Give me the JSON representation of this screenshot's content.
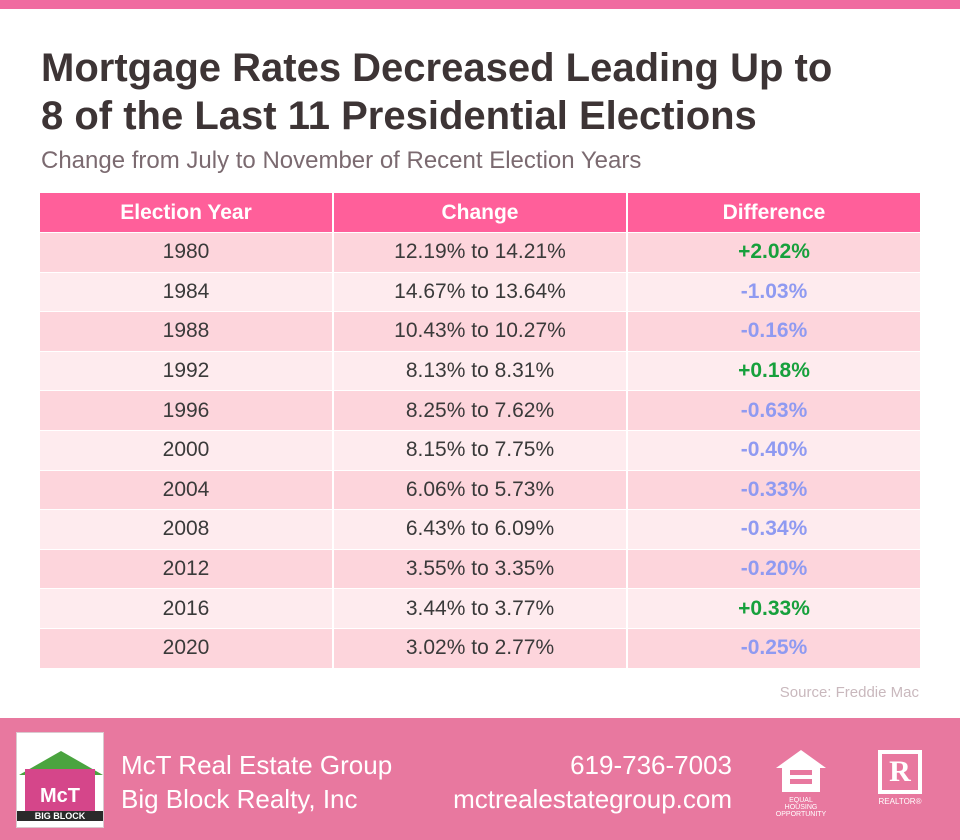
{
  "title_line1": "Mortgage Rates Decreased Leading Up to",
  "title_line2": "8 of the Last 11 Presidential Elections",
  "subtitle": "Change from July to November of Recent Election Years",
  "table": {
    "headers": [
      "Election Year",
      "Change",
      "Difference"
    ],
    "rows": [
      {
        "year": "1980",
        "change": "12.19% to 14.21%",
        "diff": "+2.02%"
      },
      {
        "year": "1984",
        "change": "14.67% to 13.64%",
        "diff": "-1.03%"
      },
      {
        "year": "1988",
        "change": "10.43% to 10.27%",
        "diff": "-0.16%"
      },
      {
        "year": "1992",
        "change": "8.13% to 8.31%",
        "diff": "+0.18%"
      },
      {
        "year": "1996",
        "change": "8.25% to 7.62%",
        "diff": "-0.63%"
      },
      {
        "year": "2000",
        "change": "8.15% to 7.75%",
        "diff": "-0.40%"
      },
      {
        "year": "2004",
        "change": "6.06% to 5.73%",
        "diff": "-0.33%"
      },
      {
        "year": "2008",
        "change": "6.43% to 6.09%",
        "diff": "-0.34%"
      },
      {
        "year": "2012",
        "change": "3.55% to 3.35%",
        "diff": "-0.20%"
      },
      {
        "year": "2016",
        "change": "3.44% to 3.77%",
        "diff": "+0.33%"
      },
      {
        "year": "2020",
        "change": "3.02% to 2.77%",
        "diff": "-0.25%"
      }
    ]
  },
  "source": "Source: Freddie Mac",
  "footer": {
    "company_line1": "McT Real Estate Group",
    "company_line2": "Big Block Realty, Inc",
    "phone": "619-736-7003",
    "website": "mctrealestategroup.com",
    "logo_text": "McT",
    "logo_sub": "BIG BLOCK",
    "equal_housing_label": "EQUAL HOUSING OPPORTUNITY",
    "realtor_label": "REALTOR®",
    "realtor_letter": "R"
  },
  "colors": {
    "accent": "#f06ba0",
    "header_bg": "#ff5f9a",
    "row_odd": "#fdd5dc",
    "row_even": "#feebee",
    "positive": "#17a03c",
    "negative": "#8f9af1",
    "footer_bg": "#e8789f"
  }
}
